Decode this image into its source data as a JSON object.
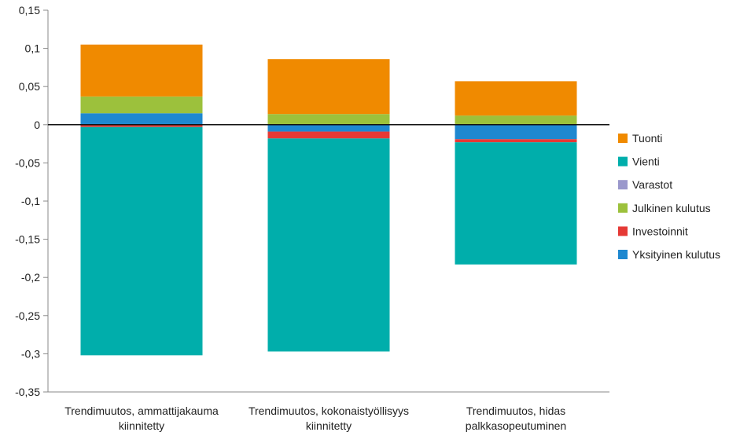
{
  "chart_data": {
    "type": "bar",
    "stacked": true,
    "ylim": [
      -0.35,
      0.15
    ],
    "yticks": [
      0.15,
      0.1,
      0.05,
      0,
      -0.05,
      -0.1,
      -0.15,
      -0.2,
      -0.25,
      -0.3,
      -0.35
    ],
    "ytick_labels": [
      "0,15",
      "0,1",
      "0,05",
      "0",
      "-0,05",
      "-0,1",
      "-0,15",
      "-0,2",
      "-0,25",
      "-0,3",
      "-0,35"
    ],
    "categories": [
      [
        "Trendimuutos, ammattijakauma",
        "kiinnitetty"
      ],
      [
        "Trendimuutos, kokonaistyöllisyys",
        "kiinnitetty"
      ],
      [
        "Trendimuutos, hidas",
        "palkkasopeutuminen"
      ]
    ],
    "series": [
      {
        "name": "Yksityinen kulutus",
        "color": "#1E88D0",
        "values": [
          0.015,
          -0.009,
          -0.019
        ]
      },
      {
        "name": "Investoinnit",
        "color": "#E53935",
        "values": [
          -0.003,
          -0.009,
          -0.004
        ]
      },
      {
        "name": "Julkinen kulutus",
        "color": "#9CC13C",
        "values": [
          0.022,
          0.014,
          0.012
        ]
      },
      {
        "name": "Varastot",
        "color": "#9A98CC",
        "values": [
          0,
          0,
          0
        ]
      },
      {
        "name": "Vienti",
        "color": "#00AEAB",
        "values": [
          -0.299,
          -0.279,
          -0.16
        ]
      },
      {
        "name": "Tuonti",
        "color": "#F08A00",
        "values": [
          0.068,
          0.072,
          0.045
        ]
      }
    ],
    "legend_order": [
      "Tuonti",
      "Vienti",
      "Varastot",
      "Julkinen kulutus",
      "Investoinnit",
      "Yksityinen kulutus"
    ],
    "legend_position": "right",
    "grid": false
  }
}
